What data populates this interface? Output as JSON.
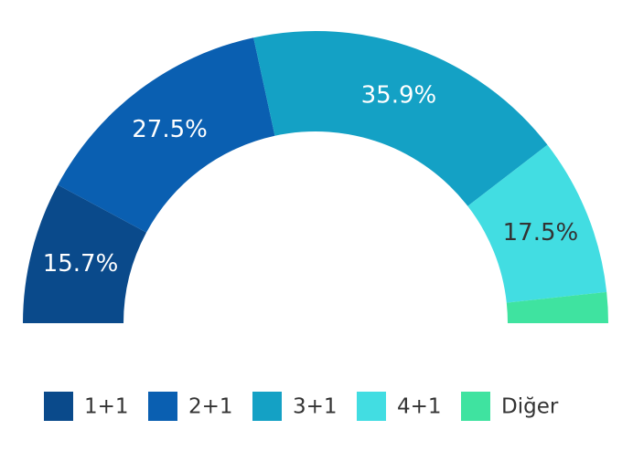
{
  "chart_data": {
    "type": "semi-donut",
    "categories": [
      "1+1",
      "2+1",
      "3+1",
      "4+1",
      "Diğer"
    ],
    "values": [
      15.7,
      27.5,
      35.9,
      17.5,
      3.4
    ],
    "value_labels": [
      "15.7%",
      "27.5%",
      "35.9%",
      "17.5%",
      null
    ],
    "colors": [
      "#0a4a8b",
      "#0a5fb1",
      "#14a1c5",
      "#42dde2",
      "#3fe3a0"
    ],
    "legend": "bottom"
  }
}
